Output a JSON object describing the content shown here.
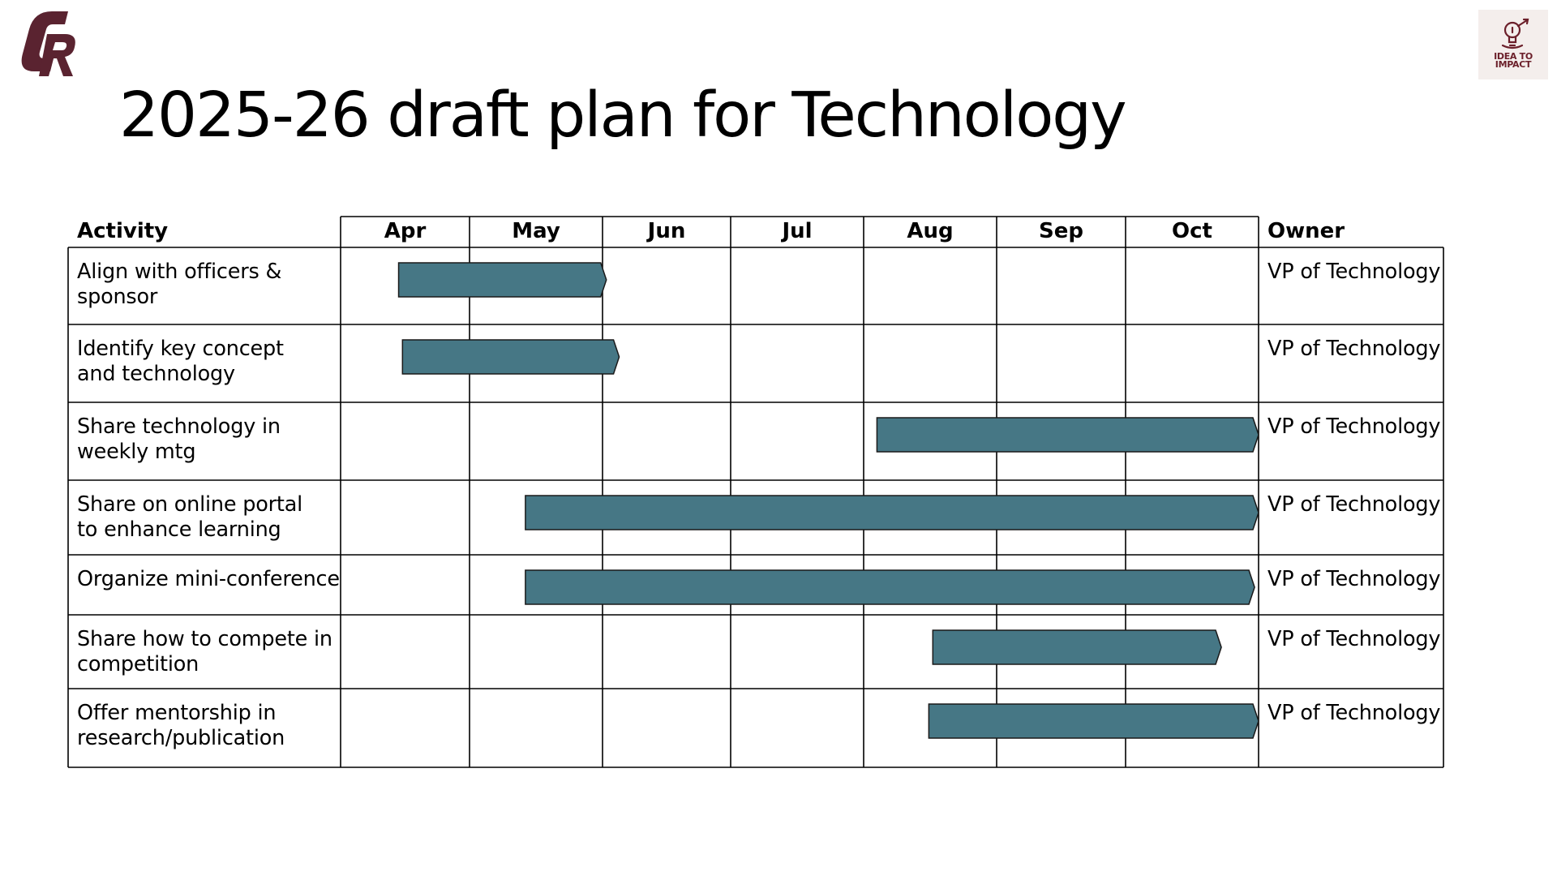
{
  "header": {
    "logo_text": "CR",
    "badge_text": "IDEA TO\nIMPACT"
  },
  "title": "2025-26 draft plan for Technology",
  "table": {
    "activity_header": "Activity",
    "owner_header": "Owner",
    "months": [
      "Apr",
      "May",
      "Jun",
      "Jul",
      "Aug",
      "Sep",
      "Oct"
    ],
    "bar_color": "#467785",
    "rows": [
      {
        "activity": "Align with officers &\nsponsor",
        "owner": "VP of Technology",
        "start": 0.45,
        "end": 2.03
      },
      {
        "activity": "Identify key concept\nand technology",
        "owner": "VP of Technology",
        "start": 0.48,
        "end": 2.13
      },
      {
        "activity": "Share technology in\nweekly mtg",
        "owner": "VP of Technology",
        "start": 4.1,
        "end": 7.0
      },
      {
        "activity": "Share on online portal\nto enhance learning",
        "owner": "VP of Technology",
        "start": 1.42,
        "end": 7.0
      },
      {
        "activity": "Organize mini-conference",
        "owner": "VP of Technology",
        "start": 1.42,
        "end": 6.97
      },
      {
        "activity": "Share how to compete in\ncompetition",
        "owner": "VP of Technology",
        "start": 4.52,
        "end": 6.72
      },
      {
        "activity": "Offer mentorship in\nresearch/publication",
        "owner": "VP of Technology",
        "start": 4.49,
        "end": 7.0
      }
    ]
  }
}
